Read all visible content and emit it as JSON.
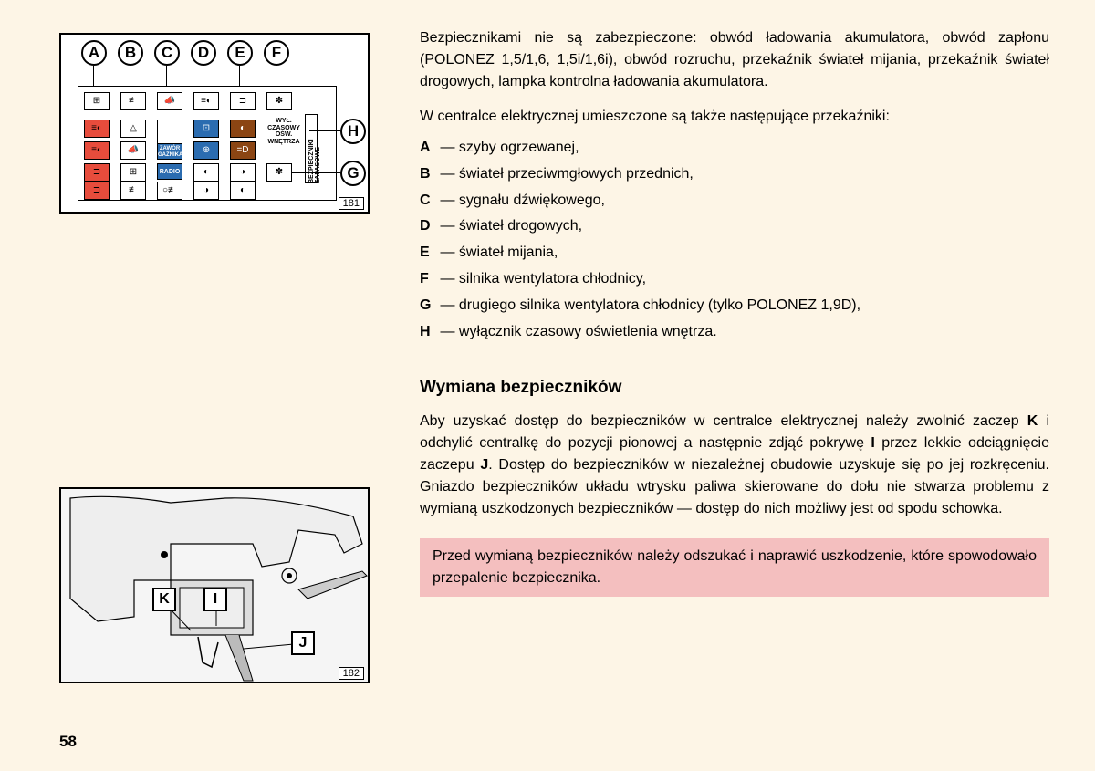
{
  "intro_para": "Bezpiecznikami nie są zabezpieczone: obwód ładowania akumulatora, obwód zapłonu (POLONEZ 1,5/1,6, 1,5i/1,6i), obwód rozruchu, przekaźnik świateł mija­nia, przekaźnik świateł drogowych, lampka kontrolna ładowania akumulatora.",
  "relay_intro": "W centralce elektrycznej umieszczone są także następujące przekaźniki:",
  "relays": [
    {
      "letter": "A",
      "desc": "szyby ogrzewanej,"
    },
    {
      "letter": "B",
      "desc": "świateł przeciwmgłowych przednich,"
    },
    {
      "letter": "C",
      "desc": "sygnału dźwiękowego,"
    },
    {
      "letter": "D",
      "desc": "świateł drogowych,"
    },
    {
      "letter": "E",
      "desc": "świateł mijania,"
    },
    {
      "letter": "F",
      "desc": "silnika wentylatora chłodnicy,"
    },
    {
      "letter": "G",
      "desc": "drugiego silnika wentylatora chłodnicy (tylko POLONEZ 1,9D),"
    },
    {
      "letter": "H",
      "desc": "wyłącznik czasowy oświetlenia wnętrza."
    }
  ],
  "section_title": "Wymiana bezpieczników",
  "access_para_html": "Aby uzyskać dostęp do bezpieczników w centralce elektrycznej należy zwolnić zaczep <b>K</b> i odchylić centralkę do pozycji pionowej a następnie zdjąć pokrywę <b>I</b> przez lekkie odciągnięcie zaczepu <b>J</b>. Dostęp do bezpieczników w niezależnej obudowie uzyskuje się po jej rozkręceniu. Gniazdo bezpieczników układu wtry­sku paliwa skierowane do dołu nie stwarza problemu z wymianą uszkodzonych bezpieczników — dostęp do nich możliwy jest od spodu schowka.",
  "warning": "Przed wymianą bezpieczników należy odszukać i naprawić uszko­dzenie, które spowodowało przepalenie bezpiecznika.",
  "page_number": "58",
  "fig1_number": "181",
  "fig2_number": "182",
  "diagram1_labels": [
    "A",
    "B",
    "C",
    "D",
    "E",
    "F",
    "G",
    "H"
  ],
  "diagram1_small": {
    "wyl": "WYŁ.\nCZASOWY\nOŚW.\nWNĘTRZA",
    "bezp": "BEZPIECZNIKI\nZAPASOWE",
    "zawor": "ZAWÓR\nGAŹNIKA",
    "radio": "RADIO"
  },
  "diagram2_labels": [
    "K",
    "I",
    "J"
  ],
  "colors": {
    "page_bg": "#fdf5e6",
    "warning_bg": "#f4bfbf",
    "fuse_red": "#e74c3c",
    "fuse_blue": "#2b6cb0",
    "fuse_brown": "#8b4513"
  }
}
